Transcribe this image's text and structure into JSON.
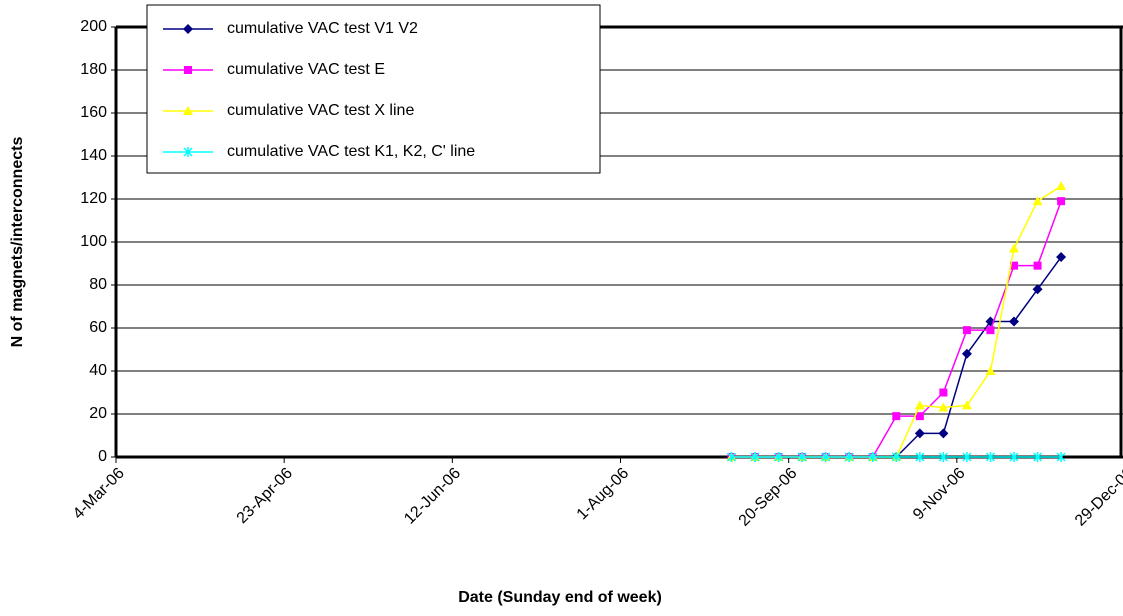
{
  "chart_data": {
    "type": "line",
    "x_label": "Date (Sunday end of week)",
    "y_label": "N of magnets/interconnects",
    "x": [
      "2006-09-03",
      "2006-09-10",
      "2006-09-17",
      "2006-09-24",
      "2006-10-01",
      "2006-10-08",
      "2006-10-15",
      "2006-10-22",
      "2006-10-29",
      "2006-11-05",
      "2006-11-12",
      "2006-11-19",
      "2006-11-26",
      "2006-12-03",
      "2006-12-10"
    ],
    "series": [
      {
        "name": "cumulative VAC test V1 V2",
        "color": "#000080",
        "marker": "diamond",
        "values": [
          0,
          0,
          0,
          0,
          0,
          0,
          0,
          0,
          11,
          11,
          48,
          63,
          63,
          78,
          93
        ]
      },
      {
        "name": "cumulative VAC test E",
        "color": "#ff00ff",
        "marker": "square",
        "values": [
          0,
          0,
          0,
          0,
          0,
          0,
          0,
          19,
          19,
          30,
          59,
          59,
          89,
          89,
          119
        ]
      },
      {
        "name": "cumulative VAC test X line",
        "color": "#ffff00",
        "marker": "triangle",
        "values": [
          0,
          0,
          0,
          0,
          0,
          0,
          0,
          0,
          24,
          23,
          24,
          40,
          97,
          119,
          126
        ]
      },
      {
        "name": "cumulative VAC test K1, K2, C' line",
        "color": "#00ffff",
        "marker": "x",
        "values": [
          0,
          0,
          0,
          0,
          0,
          0,
          0,
          0,
          0,
          0,
          0,
          0,
          0,
          0,
          0
        ]
      }
    ],
    "xlim": [
      "2006-03-04",
      "2006-12-29"
    ],
    "xticks": [
      {
        "value": "2006-03-04",
        "label": "4-Mar-06"
      },
      {
        "value": "2006-04-23",
        "label": "23-Apr-06"
      },
      {
        "value": "2006-06-12",
        "label": "12-Jun-06"
      },
      {
        "value": "2006-08-01",
        "label": "1-Aug-06"
      },
      {
        "value": "2006-09-20",
        "label": "20-Sep-06"
      },
      {
        "value": "2006-11-09",
        "label": "9-Nov-06"
      },
      {
        "value": "2006-12-29",
        "label": "29-Dec-06"
      }
    ],
    "ylim": [
      0,
      200
    ],
    "yticks": [
      0,
      20,
      40,
      60,
      80,
      100,
      120,
      140,
      160,
      180,
      200
    ],
    "grid": true,
    "legend": "top-left"
  }
}
